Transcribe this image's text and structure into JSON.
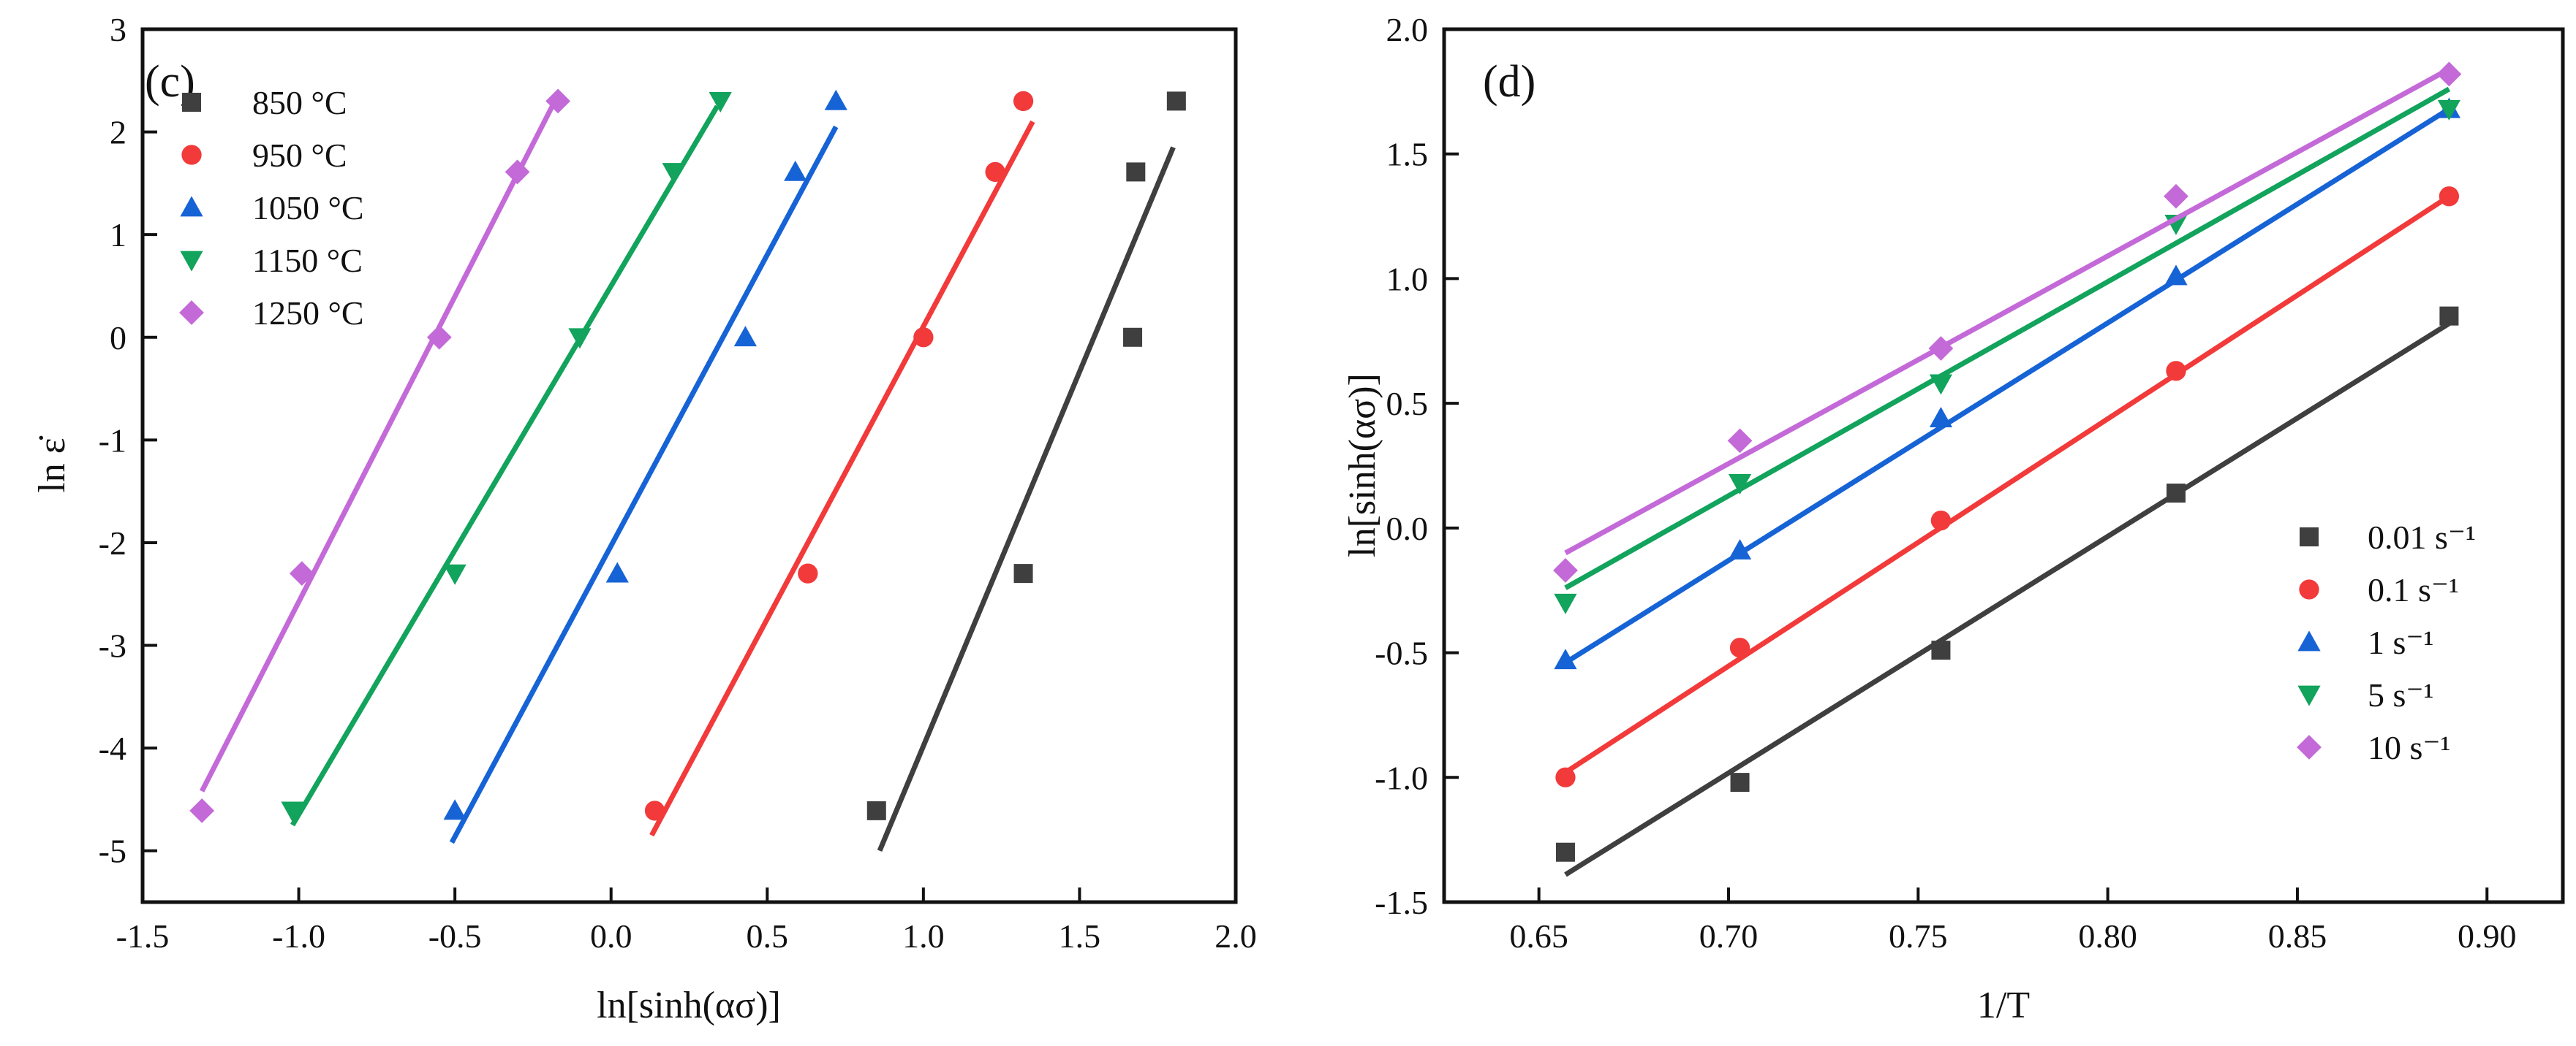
{
  "chart_data": [
    {
      "type": "scatter",
      "panel_label": "(c)",
      "xlabel": "ln[sinh(ασ)]",
      "ylabel": "ln ε̇",
      "xlim": [
        -1.5,
        2.0
      ],
      "ylim": [
        -5.5,
        3.0
      ],
      "xticks": [
        -1.5,
        -1.0,
        -0.5,
        0.0,
        0.5,
        1.0,
        1.5,
        2.0
      ],
      "xtick_labels": [
        "-1.5",
        "-1.0",
        "-0.5",
        "0.0",
        "0.5",
        "1.0",
        "1.5",
        "2.0"
      ],
      "yticks": [
        -5,
        -4,
        -3,
        -2,
        -1,
        0,
        1,
        2,
        3
      ],
      "ytick_labels": [
        "-5",
        "-4",
        "-3",
        "-2",
        "-1",
        "0",
        "1",
        "2",
        "3"
      ],
      "legend_position": "top-left",
      "series": [
        {
          "name": "850 °C",
          "color": "#3f3f3f",
          "marker": "square",
          "x": [
            0.85,
            1.32,
            1.67,
            1.68,
            1.81
          ],
          "y": [
            -4.61,
            -2.3,
            0.0,
            1.61,
            2.3
          ],
          "fit": [
            [
              0.86,
              -5.0
            ],
            [
              1.8,
              1.85
            ]
          ]
        },
        {
          "name": "950 °C",
          "color": "#f23a3a",
          "marker": "circle",
          "x": [
            0.14,
            0.63,
            1.0,
            1.23,
            1.32
          ],
          "y": [
            -4.61,
            -2.3,
            0.0,
            1.61,
            2.3
          ],
          "fit": [
            [
              0.13,
              -4.85
            ],
            [
              1.35,
              2.1
            ]
          ]
        },
        {
          "name": "1050 °C",
          "color": "#1663d6",
          "marker": "triangle-up",
          "x": [
            -0.5,
            0.02,
            0.43,
            0.59,
            0.72
          ],
          "y": [
            -4.61,
            -2.3,
            0.0,
            1.61,
            2.3
          ],
          "fit": [
            [
              -0.51,
              -4.92
            ],
            [
              0.72,
              2.05
            ]
          ]
        },
        {
          "name": "1150 °C",
          "color": "#12a35c",
          "marker": "triangle-down",
          "x": [
            -1.02,
            -0.5,
            -0.1,
            0.2,
            0.35
          ],
          "y": [
            -4.61,
            -2.3,
            0.0,
            1.61,
            2.3
          ],
          "fit": [
            [
              -1.02,
              -4.75
            ],
            [
              0.34,
              2.25
            ]
          ]
        },
        {
          "name": "1250 °C",
          "color": "#c36ad8",
          "marker": "diamond",
          "x": [
            -1.31,
            -0.99,
            -0.55,
            -0.3,
            -0.17
          ],
          "y": [
            -4.61,
            -2.3,
            0.0,
            1.61,
            2.3
          ],
          "fit": [
            [
              -1.31,
              -4.42
            ],
            [
              -0.18,
              2.3
            ]
          ]
        }
      ]
    },
    {
      "type": "scatter",
      "panel_label": "(d)",
      "xlabel": "1/T",
      "ylabel": "ln[sinh(ασ)]",
      "xlim": [
        0.625,
        0.92
      ],
      "ylim": [
        -1.5,
        2.0
      ],
      "xticks": [
        0.65,
        0.7,
        0.75,
        0.8,
        0.85,
        0.9
      ],
      "xtick_labels": [
        "0.65",
        "0.70",
        "0.75",
        "0.80",
        "0.85",
        "0.90"
      ],
      "yticks": [
        -1.5,
        -1.0,
        -0.5,
        0.0,
        0.5,
        1.0,
        1.5,
        2.0
      ],
      "ytick_labels": [
        "-1.5",
        "-1.0",
        "-0.5",
        "0.0",
        "0.5",
        "1.0",
        "1.5",
        "2.0"
      ],
      "legend_position": "bottom-right",
      "series": [
        {
          "name": "0.01 s⁻¹",
          "color": "#3f3f3f",
          "marker": "square",
          "x": [
            0.657,
            0.703,
            0.756,
            0.818,
            0.89
          ],
          "y": [
            -1.3,
            -1.02,
            -0.49,
            0.14,
            0.85
          ],
          "fit": [
            [
              0.657,
              -1.39
            ],
            [
              0.89,
              0.82
            ]
          ]
        },
        {
          "name": "0.1 s⁻¹",
          "color": "#f23a3a",
          "marker": "circle",
          "x": [
            0.657,
            0.703,
            0.756,
            0.818,
            0.89
          ],
          "y": [
            -1.0,
            -0.48,
            0.03,
            0.63,
            1.33
          ],
          "fit": [
            [
              0.657,
              -0.98
            ],
            [
              0.89,
              1.33
            ]
          ]
        },
        {
          "name": "1 s⁻¹",
          "color": "#1663d6",
          "marker": "triangle-up",
          "x": [
            0.657,
            0.703,
            0.756,
            0.818,
            0.89
          ],
          "y": [
            -0.53,
            -0.09,
            0.44,
            1.01,
            1.68
          ],
          "fit": [
            [
              0.657,
              -0.54
            ],
            [
              0.89,
              1.68
            ]
          ]
        },
        {
          "name": "5 s⁻¹",
          "color": "#12a35c",
          "marker": "triangle-down",
          "x": [
            0.657,
            0.703,
            0.756,
            0.818,
            0.89
          ],
          "y": [
            -0.3,
            0.18,
            0.58,
            1.22,
            1.68
          ],
          "fit": [
            [
              0.657,
              -0.24
            ],
            [
              0.89,
              1.76
            ]
          ]
        },
        {
          "name": "10 s⁻¹",
          "color": "#c36ad8",
          "marker": "diamond",
          "x": [
            0.657,
            0.703,
            0.756,
            0.818,
            0.89
          ],
          "y": [
            -0.17,
            0.35,
            0.72,
            1.33,
            1.82
          ],
          "fit": [
            [
              0.657,
              -0.1
            ],
            [
              0.89,
              1.84
            ]
          ]
        }
      ]
    }
  ]
}
